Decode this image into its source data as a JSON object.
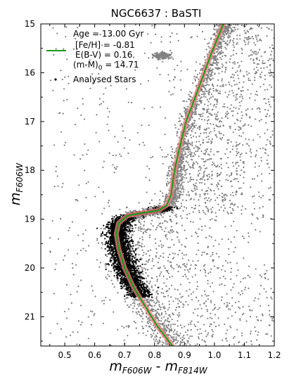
{
  "chart_data": {
    "type": "scatter",
    "title": "NGC6637 : BaSTI",
    "xlabel": {
      "base": "m",
      "sub1": "F606W",
      "sep": " - ",
      "base2": "m",
      "sub2": "F814W"
    },
    "ylabel": {
      "base": "m",
      "sub": "F606W"
    },
    "xlim": [
      0.42,
      1.2
    ],
    "ylim": [
      21.6,
      15.0
    ],
    "y_inverted": true,
    "xticks": [
      "0.5",
      "0.6",
      "0.7",
      "0.8",
      "0.9",
      "1.0",
      "1.1",
      "1.2"
    ],
    "yticks": [
      "15",
      "16",
      "17",
      "18",
      "19",
      "20",
      "21"
    ],
    "legend": {
      "placement": "top-left",
      "age": "Age = 13.00 Gyr",
      "feh": "[Fe/H] = -0.81",
      "ebv": "E(B-V) = 0.16",
      "dm_prefix": "(m-M)",
      "dm_sub": "0",
      "dm_suffix": " = 14.71",
      "stars_label": "Analysed Stars"
    },
    "isochrone_color": "#1a9a1a",
    "isochrone_band_color": "#f08080",
    "field_star_color": "#808080",
    "analysed_star_color": "#000000",
    "isochrone": [
      {
        "x": 0.86,
        "y": 21.6
      },
      {
        "x": 0.81,
        "y": 21.2
      },
      {
        "x": 0.77,
        "y": 20.8
      },
      {
        "x": 0.73,
        "y": 20.4
      },
      {
        "x": 0.7,
        "y": 20.0
      },
      {
        "x": 0.68,
        "y": 19.6
      },
      {
        "x": 0.672,
        "y": 19.3
      },
      {
        "x": 0.68,
        "y": 19.08
      },
      {
        "x": 0.71,
        "y": 18.93
      },
      {
        "x": 0.76,
        "y": 18.87
      },
      {
        "x": 0.81,
        "y": 18.83
      },
      {
        "x": 0.84,
        "y": 18.72
      },
      {
        "x": 0.855,
        "y": 18.5
      },
      {
        "x": 0.862,
        "y": 18.2
      },
      {
        "x": 0.87,
        "y": 17.9
      },
      {
        "x": 0.885,
        "y": 17.5
      },
      {
        "x": 0.905,
        "y": 17.0
      },
      {
        "x": 0.93,
        "y": 16.6
      },
      {
        "x": 0.96,
        "y": 16.1
      },
      {
        "x": 0.99,
        "y": 15.6
      },
      {
        "x": 1.02,
        "y": 15.15
      },
      {
        "x": 1.03,
        "y": 15.0
      }
    ],
    "red_clump": {
      "x": 0.825,
      "y": 15.65
    }
  }
}
